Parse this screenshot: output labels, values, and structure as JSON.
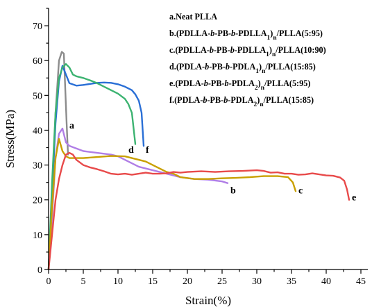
{
  "chart_data": {
    "type": "line",
    "xlabel": "Strain(%)",
    "ylabel": "Stress(MPa)",
    "xlim": [
      0,
      46
    ],
    "ylim": [
      0,
      75
    ],
    "xticks": [
      0,
      5,
      10,
      15,
      20,
      25,
      30,
      35,
      40,
      45
    ],
    "yticks": [
      0,
      10,
      20,
      30,
      40,
      50,
      60,
      70
    ],
    "legend_position": "top-right",
    "legend": [
      {
        "text": "a.Neat PLLA",
        "parts": [
          {
            "t": "a.Neat PLLA"
          }
        ]
      },
      {
        "text": "b.(PDLLA-b-PB-b-PDLLA1)n/PLLA(5:95)",
        "parts": [
          {
            "t": "b.(PDLLA-"
          },
          {
            "t": "b",
            "i": true
          },
          {
            "t": "-PB-"
          },
          {
            "t": "b",
            "i": true
          },
          {
            "t": "-PDLLA"
          },
          {
            "t": "1",
            "sub": true
          },
          {
            "t": ")"
          },
          {
            "t": "n",
            "sub": true
          },
          {
            "t": "/PLLA(5:95)"
          }
        ]
      },
      {
        "text": "c.(PDLLA-b-PB-b-PDLLA1)n/PLLA(10:90)",
        "parts": [
          {
            "t": "c.(PDLLA-"
          },
          {
            "t": "b",
            "i": true
          },
          {
            "t": "-PB-"
          },
          {
            "t": "b",
            "i": true
          },
          {
            "t": "-PDLLA"
          },
          {
            "t": "1",
            "sub": true
          },
          {
            "t": ")"
          },
          {
            "t": "n",
            "sub": true
          },
          {
            "t": "/PLLA(10:90)"
          }
        ]
      },
      {
        "text": "d.(PDLA-b-PB-b-PDLA1)n/PLLA(15:85)",
        "parts": [
          {
            "t": "d.(PDLA-"
          },
          {
            "t": "b",
            "i": true
          },
          {
            "t": "-PB-"
          },
          {
            "t": "b",
            "i": true
          },
          {
            "t": "-PDLA"
          },
          {
            "t": "1",
            "sub": true
          },
          {
            "t": ")"
          },
          {
            "t": "n",
            "sub": true
          },
          {
            "t": "/PLLA(15:85)"
          }
        ]
      },
      {
        "text": "e.(PDLA-b-PB-b-PDLA2)n/PLLA(5:95)",
        "parts": [
          {
            "t": "e.(PDLA-"
          },
          {
            "t": "b",
            "i": true
          },
          {
            "t": "-PB-"
          },
          {
            "t": "b",
            "i": true
          },
          {
            "t": "-PDLA"
          },
          {
            "t": "2",
            "sub": true
          },
          {
            "t": ")"
          },
          {
            "t": "n",
            "sub": true
          },
          {
            "t": "/PLLA(5:95)"
          }
        ]
      },
      {
        "text": "f.(PDLA-b-PB-b-PDLA2)n/PLLA(15:85)",
        "parts": [
          {
            "t": "f.(PDLA-"
          },
          {
            "t": "b",
            "i": true
          },
          {
            "t": "-PB-"
          },
          {
            "t": "b",
            "i": true
          },
          {
            "t": "-PDLA"
          },
          {
            "t": "2",
            "sub": true
          },
          {
            "t": ")"
          },
          {
            "t": "n",
            "sub": true
          },
          {
            "t": "/PLLA(15:85)"
          }
        ]
      }
    ],
    "series": [
      {
        "label": "a",
        "color": "#8c8c8c",
        "points": [
          [
            0,
            0
          ],
          [
            0.5,
            20
          ],
          [
            1,
            45
          ],
          [
            1.5,
            60
          ],
          [
            1.9,
            62.5
          ],
          [
            2.2,
            62
          ],
          [
            2.6,
            42
          ],
          [
            2.8,
            33
          ]
        ]
      },
      {
        "label": "f",
        "color": "#2a6fd6",
        "points": [
          [
            0,
            0
          ],
          [
            0.5,
            22
          ],
          [
            1,
            42
          ],
          [
            1.5,
            54
          ],
          [
            2,
            58.5
          ],
          [
            2.5,
            56
          ],
          [
            3,
            53.5
          ],
          [
            4,
            52.8
          ],
          [
            5,
            53
          ],
          [
            6,
            53.3
          ],
          [
            7,
            53.6
          ],
          [
            8,
            53.7
          ],
          [
            9,
            53.6
          ],
          [
            10,
            53.2
          ],
          [
            11,
            52.5
          ],
          [
            12,
            51.5
          ],
          [
            12.5,
            50.3
          ],
          [
            13,
            48.5
          ],
          [
            13.4,
            45
          ],
          [
            13.7,
            35.5
          ]
        ]
      },
      {
        "label": "d",
        "color": "#3cb371",
        "points": [
          [
            0,
            0
          ],
          [
            0.5,
            25
          ],
          [
            1,
            45
          ],
          [
            1.5,
            55
          ],
          [
            2,
            58
          ],
          [
            2.5,
            59
          ],
          [
            3,
            58
          ],
          [
            3.5,
            56
          ],
          [
            4,
            55.5
          ],
          [
            5,
            55
          ],
          [
            6,
            54.3
          ],
          [
            7,
            53.5
          ],
          [
            8,
            52.5
          ],
          [
            9,
            51.5
          ],
          [
            10,
            50.5
          ],
          [
            11,
            49
          ],
          [
            11.5,
            47.5
          ],
          [
            12,
            45
          ],
          [
            12.5,
            36
          ]
        ]
      },
      {
        "label": "b",
        "color": "#b07ee6",
        "points": [
          [
            0,
            0
          ],
          [
            0.5,
            15
          ],
          [
            1,
            32
          ],
          [
            1.5,
            39
          ],
          [
            2,
            40.5
          ],
          [
            2.5,
            36.5
          ],
          [
            3,
            35.5
          ],
          [
            5,
            34
          ],
          [
            7,
            33.5
          ],
          [
            9,
            33
          ],
          [
            10,
            32.5
          ],
          [
            11,
            31.5
          ],
          [
            12,
            30.5
          ],
          [
            13,
            29.5
          ],
          [
            15,
            28.5
          ],
          [
            17,
            27.5
          ],
          [
            19,
            26.5
          ],
          [
            21,
            26
          ],
          [
            23,
            25.8
          ],
          [
            25,
            25.3
          ],
          [
            25.8,
            24.8
          ]
        ]
      },
      {
        "label": "c",
        "color": "#c9a000",
        "points": [
          [
            0,
            0
          ],
          [
            0.5,
            18
          ],
          [
            1,
            32
          ],
          [
            1.5,
            37.5
          ],
          [
            2,
            34
          ],
          [
            2.5,
            32.5
          ],
          [
            3,
            32
          ],
          [
            5,
            32
          ],
          [
            7,
            32.3
          ],
          [
            9,
            32.6
          ],
          [
            11,
            32.5
          ],
          [
            13,
            31.5
          ],
          [
            14,
            31
          ],
          [
            15,
            30
          ],
          [
            16,
            29
          ],
          [
            17,
            28
          ],
          [
            18,
            27.5
          ],
          [
            19,
            26.5
          ],
          [
            21,
            26
          ],
          [
            23,
            26
          ],
          [
            25,
            26.2
          ],
          [
            27,
            26.3
          ],
          [
            29,
            26.5
          ],
          [
            31,
            26.8
          ],
          [
            33,
            26.8
          ],
          [
            34.5,
            26.5
          ],
          [
            35.2,
            25
          ],
          [
            35.6,
            22.5
          ]
        ]
      },
      {
        "label": "e",
        "color": "#e84a4a",
        "points": [
          [
            0,
            0
          ],
          [
            0.5,
            10
          ],
          [
            1,
            20
          ],
          [
            1.5,
            26
          ],
          [
            2,
            30
          ],
          [
            2.5,
            33
          ],
          [
            3,
            33.5
          ],
          [
            3.5,
            33
          ],
          [
            4,
            31.5
          ],
          [
            5,
            30
          ],
          [
            6,
            29.3
          ],
          [
            7,
            28.8
          ],
          [
            8,
            28.2
          ],
          [
            9,
            27.5
          ],
          [
            10,
            27.3
          ],
          [
            11,
            27.5
          ],
          [
            12,
            27.2
          ],
          [
            13,
            27.5
          ],
          [
            14,
            27.8
          ],
          [
            15,
            27.5
          ],
          [
            16,
            27.5
          ],
          [
            17,
            27.6
          ],
          [
            18,
            28
          ],
          [
            19,
            27.8
          ],
          [
            20,
            28
          ],
          [
            22,
            28.2
          ],
          [
            24,
            28
          ],
          [
            26,
            28.2
          ],
          [
            28,
            28.3
          ],
          [
            30,
            28.5
          ],
          [
            31,
            28.3
          ],
          [
            32,
            27.8
          ],
          [
            33,
            27.9
          ],
          [
            34,
            27.5
          ],
          [
            35,
            27.5
          ],
          [
            36,
            27.2
          ],
          [
            37,
            27.3
          ],
          [
            38,
            27.6
          ],
          [
            39,
            27.3
          ],
          [
            40,
            27
          ],
          [
            41,
            26.9
          ],
          [
            42,
            26.4
          ],
          [
            42.6,
            25.5
          ],
          [
            43,
            23
          ],
          [
            43.3,
            20
          ]
        ]
      }
    ],
    "curve_labels": [
      {
        "text": "a",
        "x": 3.0,
        "y": 40.5
      },
      {
        "text": "b",
        "x": 26.2,
        "y": 21.8
      },
      {
        "text": "c",
        "x": 36.0,
        "y": 21.8
      },
      {
        "text": "d",
        "x": 11.5,
        "y": 33.5
      },
      {
        "text": "e",
        "x": 43.7,
        "y": 19.8
      },
      {
        "text": "f",
        "x": 14.0,
        "y": 33.5
      }
    ]
  }
}
